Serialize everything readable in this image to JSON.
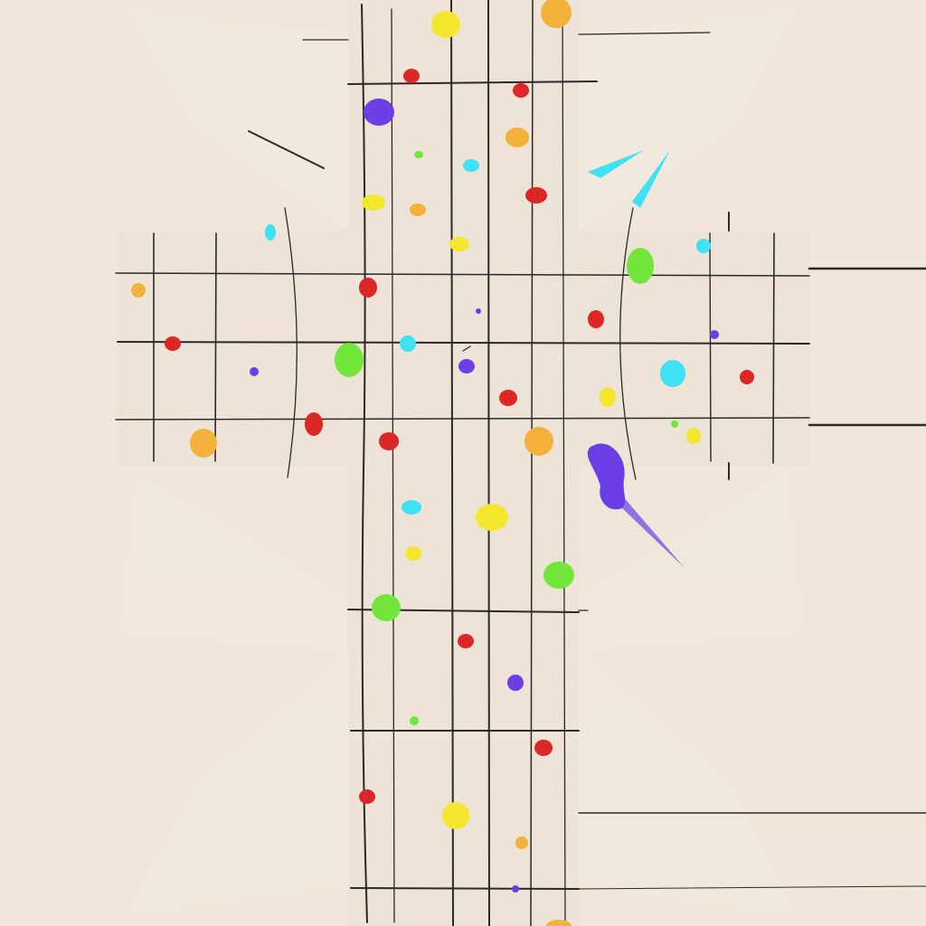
{
  "palette": {
    "background": "#f0e6da",
    "paper": "#ede3d6",
    "ink": "#2a2a2a",
    "red": "#dd2626",
    "orange": "#f2b23b",
    "yellow": "#f5e62e",
    "green": "#72e63a",
    "cyan": "#3ee2f2",
    "purple": "#6c3fe6"
  },
  "stroke_names": [
    "cyan-streak-a",
    "cyan-streak-b",
    "purple-splash-tail"
  ]
}
